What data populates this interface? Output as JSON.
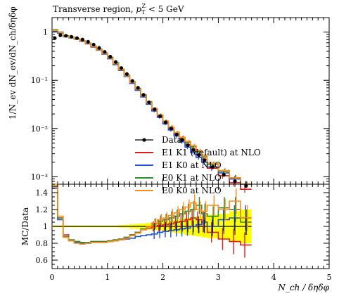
{
  "chart_data": {
    "type": "line",
    "title": "Transverse region, p_T^Z < 5 GeV",
    "title_parts": {
      "main": "Transverse region, ",
      "sym": "p",
      "sub": "T",
      "sup": "Z",
      "rest": " < 5 GeV"
    },
    "xlabel": "N_ch / δηδφ",
    "ylabel": "1/N_ev dN_ev/dN_ch/δηδφ",
    "ratio_ylabel": "MC/Data",
    "xlim": [
      0,
      5
    ],
    "ylim_main": [
      0.0007,
      2
    ],
    "yscale_main": "log",
    "ylim_ratio": [
      0.5,
      1.5
    ],
    "x_ticks": [
      "0",
      "1",
      "2",
      "3",
      "4",
      "5"
    ],
    "y_ticks_main": [
      "1",
      "10⁻¹",
      "10⁻²",
      "10⁻³"
    ],
    "y_ticks_ratio": [
      "0.6",
      "0.8",
      "1",
      "1.2",
      "1.4"
    ],
    "legend_position": "lower-left",
    "bin_edges": [
      0,
      0.1,
      0.2,
      0.3,
      0.4,
      0.5,
      0.6,
      0.7,
      0.8,
      0.9,
      1.0,
      1.1,
      1.2,
      1.3,
      1.4,
      1.5,
      1.6,
      1.7,
      1.8,
      1.9,
      2.0,
      2.1,
      2.2,
      2.3,
      2.4,
      2.5,
      2.6,
      2.7,
      2.8,
      3.0,
      3.2,
      3.4,
      3.6
    ],
    "data": {
      "name": "Data",
      "x": [
        0.05,
        0.15,
        0.25,
        0.35,
        0.45,
        0.55,
        0.65,
        0.75,
        0.85,
        0.95,
        1.05,
        1.15,
        1.25,
        1.35,
        1.45,
        1.55,
        1.65,
        1.75,
        1.85,
        1.95,
        2.05,
        2.15,
        2.25,
        2.35,
        2.45,
        2.55,
        2.65,
        2.75,
        2.9,
        3.1,
        3.3,
        3.5
      ],
      "y": [
        0.75,
        0.86,
        0.84,
        0.8,
        0.75,
        0.7,
        0.63,
        0.55,
        0.47,
        0.39,
        0.31,
        0.24,
        0.18,
        0.135,
        0.097,
        0.07,
        0.05,
        0.035,
        0.025,
        0.018,
        0.0135,
        0.01,
        0.0075,
        0.0058,
        0.0045,
        0.0036,
        0.0028,
        0.0022,
        0.0016,
        0.0011,
        0.0008,
        0.00065
      ]
    },
    "series": [
      {
        "name": "E1 K1 (default) at NLO",
        "color": "#e31a1c",
        "y": [
          1.1,
          1.0,
          0.82,
          0.78,
          0.72,
          0.65,
          0.58,
          0.5,
          0.43,
          0.36,
          0.29,
          0.22,
          0.165,
          0.125,
          0.09,
          0.066,
          0.048,
          0.035,
          0.025,
          0.018,
          0.0135,
          0.01,
          0.0076,
          0.0059,
          0.0046,
          0.0037,
          0.0029,
          0.0023,
          0.0015,
          0.00105,
          0.00075,
          0.00055
        ],
        "ratio": [
          1.47,
          1.1,
          0.9,
          0.84,
          0.82,
          0.81,
          0.81,
          0.82,
          0.82,
          0.82,
          0.83,
          0.84,
          0.85,
          0.87,
          0.9,
          0.93,
          0.96,
          0.98,
          1.0,
          1.01,
          1.02,
          1.03,
          1.05,
          1.06,
          1.08,
          1.1,
          1.08,
          1.05,
          0.93,
          0.85,
          0.82,
          0.78
        ]
      },
      {
        "name": "E1 K0 at NLO",
        "color": "#1f50d8",
        "y": [
          1.05,
          0.95,
          0.8,
          0.76,
          0.71,
          0.64,
          0.57,
          0.49,
          0.42,
          0.35,
          0.28,
          0.21,
          0.16,
          0.12,
          0.086,
          0.062,
          0.045,
          0.032,
          0.023,
          0.017,
          0.0125,
          0.0093,
          0.007,
          0.0053,
          0.0041,
          0.0032,
          0.0025,
          0.002,
          0.0016,
          0.0012,
          0.0009,
          0.0007
        ],
        "ratio": [
          1.45,
          1.08,
          0.88,
          0.83,
          0.81,
          0.8,
          0.8,
          0.81,
          0.81,
          0.81,
          0.82,
          0.83,
          0.84,
          0.85,
          0.86,
          0.88,
          0.89,
          0.9,
          0.91,
          0.93,
          0.94,
          0.95,
          0.96,
          0.97,
          0.98,
          1.0,
          1.02,
          1.05,
          1.0,
          1.08,
          1.1,
          1.1
        ]
      },
      {
        "name": "E0 K1 at NLO",
        "color": "#2e8b2e",
        "y": [
          1.12,
          1.0,
          0.84,
          0.79,
          0.73,
          0.66,
          0.59,
          0.51,
          0.44,
          0.37,
          0.3,
          0.23,
          0.17,
          0.128,
          0.093,
          0.068,
          0.05,
          0.036,
          0.026,
          0.0192,
          0.0143,
          0.0107,
          0.0082,
          0.0065,
          0.0052,
          0.0042,
          0.0033,
          0.0026,
          0.0018,
          0.0013,
          0.00095,
          0.0007
        ],
        "ratio": [
          1.48,
          1.1,
          0.88,
          0.84,
          0.82,
          0.81,
          0.81,
          0.82,
          0.82,
          0.82,
          0.83,
          0.84,
          0.85,
          0.87,
          0.9,
          0.93,
          0.97,
          1.0,
          1.03,
          1.06,
          1.08,
          1.1,
          1.12,
          1.15,
          1.18,
          1.2,
          1.25,
          1.15,
          1.12,
          1.22,
          1.2,
          1.05
        ]
      },
      {
        "name": "E0 K0 at NLO",
        "color": "#ff8c1a",
        "y": [
          1.08,
          0.98,
          0.82,
          0.77,
          0.72,
          0.65,
          0.58,
          0.5,
          0.43,
          0.36,
          0.29,
          0.22,
          0.165,
          0.124,
          0.09,
          0.066,
          0.048,
          0.035,
          0.026,
          0.019,
          0.0142,
          0.0108,
          0.0083,
          0.0066,
          0.0054,
          0.0044,
          0.0035,
          0.0027,
          0.0019,
          0.00135,
          0.00095,
          0.0007
        ],
        "ratio": [
          1.5,
          1.12,
          0.87,
          0.83,
          0.8,
          0.79,
          0.8,
          0.81,
          0.81,
          0.81,
          0.82,
          0.83,
          0.84,
          0.86,
          0.89,
          0.92,
          0.96,
          1.0,
          1.04,
          1.08,
          1.1,
          1.13,
          1.16,
          1.2,
          1.23,
          1.28,
          1.2,
          1.18,
          1.25,
          1.2,
          1.3,
          1.1
        ]
      }
    ],
    "band": {
      "color": "#ffff00",
      "half_width": [
        0.01,
        0.01,
        0.01,
        0.01,
        0.01,
        0.01,
        0.01,
        0.01,
        0.01,
        0.01,
        0.01,
        0.01,
        0.015,
        0.02,
        0.025,
        0.03,
        0.035,
        0.04,
        0.045,
        0.05,
        0.06,
        0.07,
        0.08,
        0.09,
        0.1,
        0.11,
        0.12,
        0.13,
        0.14,
        0.15,
        0.18,
        0.2
      ]
    },
    "ratio_errors": [
      0.02,
      0.02,
      0.02,
      0.02,
      0.02,
      0.02,
      0.02,
      0.02,
      0.02,
      0.02,
      0.02,
      0.02,
      0.02,
      0.02,
      0.03,
      0.03,
      0.03,
      0.04,
      0.04,
      0.04,
      0.05,
      0.05,
      0.06,
      0.06,
      0.07,
      0.07,
      0.08,
      0.08,
      0.08,
      0.09,
      0.1,
      0.1
    ]
  }
}
